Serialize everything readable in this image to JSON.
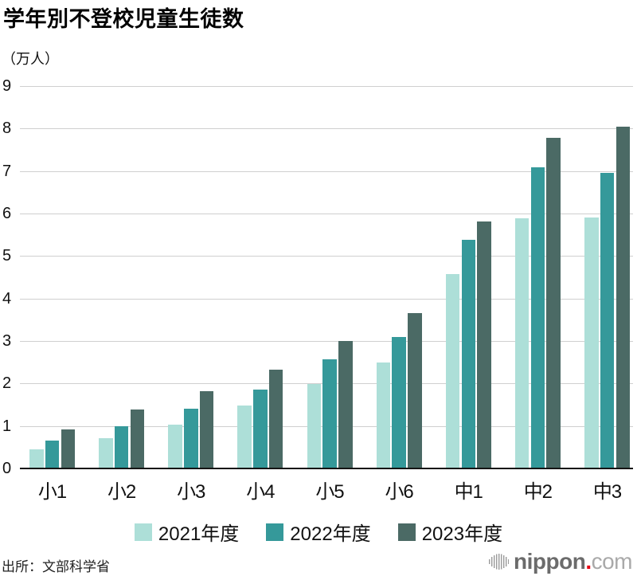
{
  "header": {
    "title": "学年別不登校児童生徒数",
    "unit_label": "（万人）"
  },
  "footer": {
    "source": "出所：文部科学省",
    "logo": {
      "name": "nippon",
      "dot": ".",
      "tld": "com",
      "mark": "vertical-bars-disc-icon",
      "dot_color": "#e60012",
      "name_color": "#6b6b6b",
      "tld_color": "#a9a9a9"
    }
  },
  "colors": {
    "grid": "#cfcfcf",
    "axis": "#141414",
    "text": "#111111"
  },
  "chart_data": {
    "type": "bar",
    "title": "学年別不登校児童生徒数",
    "ylabel": "（万人）",
    "xlabel": "",
    "categories": [
      "小1",
      "小2",
      "小3",
      "小4",
      "小5",
      "小6",
      "中1",
      "中2",
      "中3"
    ],
    "series": [
      {
        "name": "2021年度",
        "color": "#addfd8",
        "values": [
          0.45,
          0.72,
          1.03,
          1.48,
          1.98,
          2.5,
          4.58,
          5.89,
          5.9
        ]
      },
      {
        "name": "2022年度",
        "color": "#35999a",
        "values": [
          0.66,
          1.0,
          1.4,
          1.86,
          2.56,
          3.1,
          5.39,
          7.08,
          6.96
        ]
      },
      {
        "name": "2023年度",
        "color": "#4b6a65",
        "values": [
          0.92,
          1.38,
          1.81,
          2.33,
          3.0,
          3.65,
          5.81,
          7.78,
          8.04
        ]
      }
    ],
    "ylim": [
      0,
      9
    ],
    "yticks": [
      0,
      1,
      2,
      3,
      4,
      5,
      6,
      7,
      8,
      9
    ],
    "grid": true,
    "legend_position": "bottom-center"
  }
}
